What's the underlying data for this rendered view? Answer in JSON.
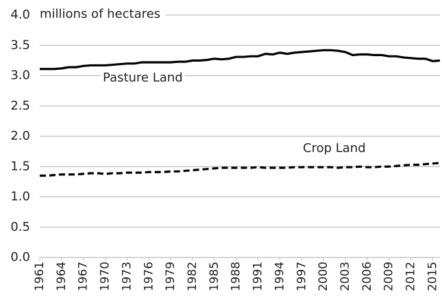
{
  "chart_data": {
    "type": "line",
    "y_label": "millions of hectares",
    "x": [
      1961,
      1962,
      1963,
      1964,
      1965,
      1966,
      1967,
      1968,
      1969,
      1970,
      1971,
      1972,
      1973,
      1974,
      1975,
      1976,
      1977,
      1978,
      1979,
      1980,
      1981,
      1982,
      1983,
      1984,
      1985,
      1986,
      1987,
      1988,
      1989,
      1990,
      1991,
      1992,
      1993,
      1994,
      1995,
      1996,
      1997,
      1998,
      1999,
      2000,
      2001,
      2002,
      2003,
      2004,
      2005,
      2006,
      2007,
      2008,
      2009,
      2010,
      2011,
      2012,
      2013,
      2014,
      2015,
      2016
    ],
    "xlim": [
      1961,
      2016
    ],
    "xticks": [
      1961,
      1964,
      1967,
      1970,
      1973,
      1976,
      1979,
      1982,
      1985,
      1988,
      1991,
      1994,
      1997,
      2000,
      2003,
      2006,
      2009,
      2012,
      2015
    ],
    "ylim": [
      0,
      4
    ],
    "yticks": [
      {
        "value": 0,
        "label": "0.0"
      },
      {
        "value": 0.5,
        "label": "0.5"
      },
      {
        "value": 1,
        "label": "1.0"
      },
      {
        "value": 1.5,
        "label": "1.5"
      },
      {
        "value": 2,
        "label": "2.0"
      },
      {
        "value": 2.5,
        "label": "2.5"
      },
      {
        "value": 3,
        "label": "3.0"
      },
      {
        "value": 3.5,
        "label": "3.5"
      },
      {
        "value": 4,
        "label": "4.0"
      }
    ],
    "grid": true,
    "series": [
      {
        "name": "Pasture Land",
        "color": "#000000",
        "dashed": false,
        "values": [
          3.11,
          3.11,
          3.11,
          3.12,
          3.14,
          3.14,
          3.16,
          3.17,
          3.17,
          3.17,
          3.18,
          3.19,
          3.2,
          3.2,
          3.22,
          3.22,
          3.22,
          3.22,
          3.22,
          3.23,
          3.23,
          3.25,
          3.25,
          3.26,
          3.28,
          3.27,
          3.28,
          3.31,
          3.31,
          3.32,
          3.32,
          3.36,
          3.35,
          3.38,
          3.36,
          3.38,
          3.39,
          3.4,
          3.41,
          3.42,
          3.42,
          3.41,
          3.39,
          3.34,
          3.35,
          3.35,
          3.34,
          3.34,
          3.32,
          3.32,
          3.3,
          3.29,
          3.28,
          3.28,
          3.24,
          3.25
        ]
      },
      {
        "name": "Crop Land",
        "color": "#000000",
        "dashed": true,
        "values": [
          1.35,
          1.35,
          1.36,
          1.37,
          1.37,
          1.37,
          1.38,
          1.39,
          1.39,
          1.38,
          1.39,
          1.39,
          1.4,
          1.4,
          1.4,
          1.41,
          1.41,
          1.41,
          1.42,
          1.42,
          1.43,
          1.44,
          1.45,
          1.46,
          1.47,
          1.48,
          1.48,
          1.48,
          1.48,
          1.48,
          1.49,
          1.48,
          1.48,
          1.48,
          1.48,
          1.49,
          1.49,
          1.49,
          1.49,
          1.49,
          1.49,
          1.48,
          1.49,
          1.49,
          1.5,
          1.49,
          1.49,
          1.5,
          1.5,
          1.51,
          1.52,
          1.53,
          1.53,
          1.54,
          1.55,
          1.56
        ]
      }
    ]
  }
}
